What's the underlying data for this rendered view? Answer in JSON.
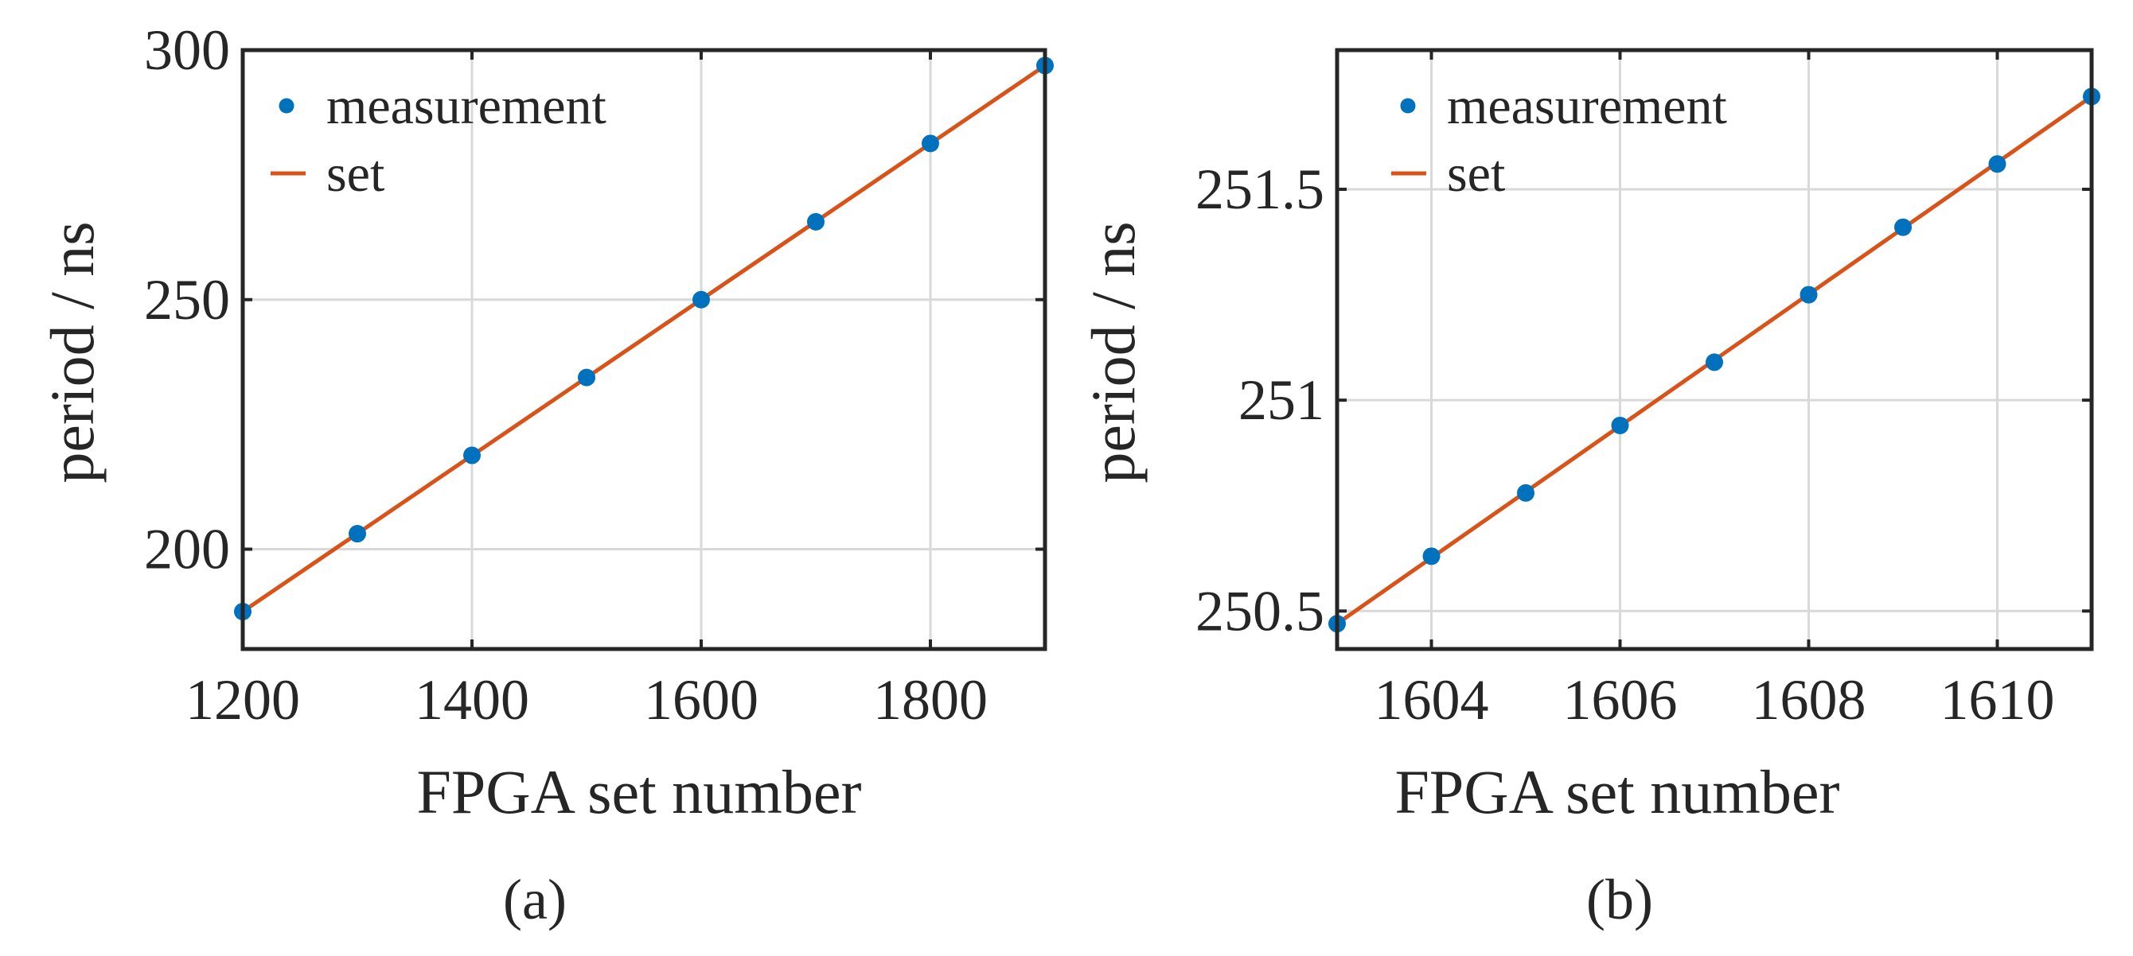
{
  "chart_data": [
    {
      "type": "scatter",
      "panel_label": "(a)",
      "xlabel": "FPGA set number",
      "ylabel": "period / ns",
      "xlim": [
        1200,
        1900
      ],
      "ylim": [
        180,
        300
      ],
      "x_ticks": [
        1200,
        1400,
        1600,
        1800
      ],
      "y_ticks": [
        200,
        250,
        300
      ],
      "x_tick_labels": [
        "1200",
        "1400",
        "1600",
        "1800"
      ],
      "y_tick_labels": [
        "200",
        "250",
        "300"
      ],
      "grid": true,
      "legend_position": "top-left",
      "series": [
        {
          "name": "measurement",
          "kind": "markers",
          "color": "#0072BD",
          "x": [
            1200,
            1300,
            1400,
            1500,
            1600,
            1700,
            1800,
            1900
          ],
          "y": [
            187.5,
            203.1,
            218.8,
            234.4,
            250.0,
            265.6,
            281.3,
            296.9
          ]
        },
        {
          "name": "set",
          "kind": "line",
          "color": "#D95319",
          "x": [
            1200,
            1900
          ],
          "y": [
            187.5,
            296.9
          ]
        }
      ]
    },
    {
      "type": "scatter",
      "panel_label": "(b)",
      "xlabel": "FPGA set number",
      "ylabel": "period / ns",
      "xlim": [
        1603,
        1611
      ],
      "ylim": [
        250.41,
        251.83
      ],
      "x_ticks": [
        1604,
        1606,
        1608,
        1610
      ],
      "y_ticks": [
        250.5,
        251,
        251.5
      ],
      "x_tick_labels": [
        "1604",
        "1606",
        "1608",
        "1610"
      ],
      "y_tick_labels": [
        "250.5",
        "251",
        "251.5"
      ],
      "grid": true,
      "legend_position": "top-left",
      "series": [
        {
          "name": "measurement",
          "kind": "markers",
          "color": "#0072BD",
          "x": [
            1603,
            1604,
            1605,
            1606,
            1607,
            1608,
            1609,
            1610,
            1611
          ],
          "y": [
            250.47,
            250.63,
            250.78,
            250.94,
            251.09,
            251.25,
            251.41,
            251.56,
            251.72
          ]
        },
        {
          "name": "set",
          "kind": "line",
          "color": "#D95319",
          "x": [
            1603,
            1611
          ],
          "y": [
            250.47,
            251.72
          ]
        }
      ]
    }
  ]
}
